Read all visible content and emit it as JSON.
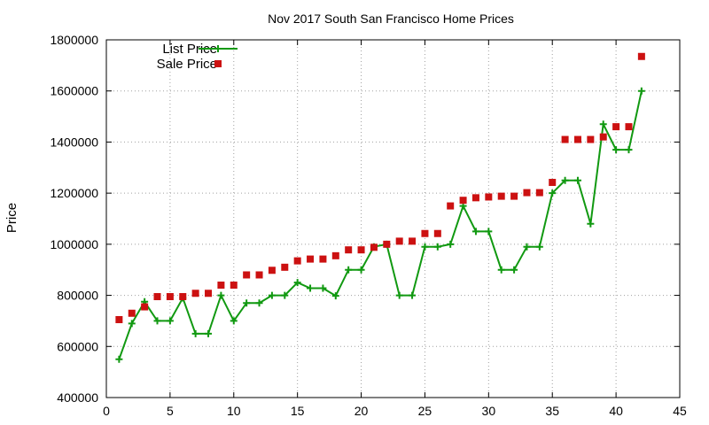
{
  "chart_data": {
    "type": "line",
    "title": "Nov 2017 South San Francisco Home Prices",
    "xlabel": "",
    "ylabel": "Price",
    "xlim": [
      0,
      45
    ],
    "ylim": [
      400000,
      1800000
    ],
    "x_ticks": [
      0,
      5,
      10,
      15,
      20,
      25,
      30,
      35,
      40,
      45
    ],
    "y_ticks": [
      400000,
      600000,
      800000,
      1000000,
      1200000,
      1400000,
      1600000,
      1800000
    ],
    "grid": true,
    "legend_position": "top-left",
    "x": [
      1,
      2,
      3,
      4,
      5,
      6,
      7,
      8,
      9,
      10,
      11,
      12,
      13,
      14,
      15,
      16,
      17,
      18,
      19,
      20,
      21,
      22,
      23,
      24,
      25,
      26,
      27,
      28,
      29,
      30,
      31,
      32,
      33,
      34,
      35,
      36,
      37,
      38,
      39,
      40,
      41,
      42
    ],
    "series": [
      {
        "name": "List Price",
        "style": "line-plus",
        "color": "#119911",
        "values": [
          550000,
          690000,
          775000,
          700000,
          700000,
          790000,
          650000,
          650000,
          800000,
          700000,
          770000,
          770000,
          800000,
          800000,
          850000,
          828000,
          828000,
          798000,
          900000,
          900000,
          990000,
          1000000,
          800000,
          800000,
          990000,
          990000,
          1000000,
          1150000,
          1050000,
          1050000,
          900000,
          900000,
          990000,
          990000,
          1200000,
          1250000,
          1250000,
          1080000,
          1470000,
          1370000,
          1370000,
          1600000
        ]
      },
      {
        "name": "Sale Price",
        "style": "square",
        "color": "#cc1111",
        "values": [
          705000,
          730000,
          755000,
          795000,
          795000,
          795000,
          808000,
          808000,
          840000,
          840000,
          880000,
          880000,
          898000,
          910000,
          935000,
          942000,
          942000,
          955000,
          978000,
          978000,
          988000,
          1000000,
          1012000,
          1012000,
          1042000,
          1042000,
          1150000,
          1172000,
          1182000,
          1185000,
          1188000,
          1188000,
          1202000,
          1202000,
          1242000,
          1410000,
          1410000,
          1410000,
          1420000,
          1460000,
          1460000,
          1735000
        ]
      }
    ]
  }
}
